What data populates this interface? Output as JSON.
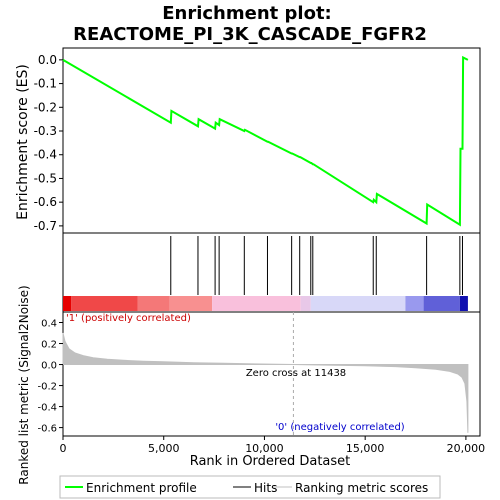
{
  "title_line1": "Enrichment plot:",
  "title_line2": "REACTOME_PI_3K_CASCADE_FGFR2",
  "colors": {
    "es_line": "#00ff00",
    "hit": "#000000",
    "metric_fill": "#c0c0c0",
    "pos_text": "#cc0000",
    "neg_text": "#0000cc",
    "zero_line": "#aaaaaa"
  },
  "chart_data": [
    {
      "type": "line",
      "name": "enrichment-score-panel",
      "ylabel": "Enrichment score (ES)",
      "xlim": [
        0,
        20700
      ],
      "ylim": [
        -0.73,
        0.05
      ],
      "yticks": [
        0.0,
        -0.1,
        -0.2,
        -0.3,
        -0.4,
        -0.5,
        -0.6,
        -0.7
      ],
      "ytick_labels": [
        "0.0",
        "-0.1",
        "-0.2",
        "-0.3",
        "-0.4",
        "-0.5",
        "-0.6",
        "-0.7"
      ],
      "series": [
        {
          "x": [
            0,
            5350,
            5380,
            6700,
            6730,
            7550,
            7580,
            7750,
            7780,
            9000,
            9030,
            10150,
            10180,
            11350,
            11380,
            11750,
            11780,
            12300,
            12330,
            12400,
            12430,
            15400,
            15430,
            15550,
            15580,
            18050,
            18080,
            19700,
            19730,
            19830,
            19860,
            20100
          ],
          "y": [
            0.0,
            -0.265,
            -0.215,
            -0.28,
            -0.25,
            -0.29,
            -0.265,
            -0.275,
            -0.25,
            -0.3,
            -0.295,
            -0.345,
            -0.345,
            -0.395,
            -0.395,
            -0.41,
            -0.41,
            -0.435,
            -0.435,
            -0.44,
            -0.44,
            -0.6,
            -0.59,
            -0.6,
            -0.565,
            -0.69,
            -0.61,
            -0.695,
            -0.375,
            -0.375,
            0.01,
            0.0
          ]
        }
      ],
      "hits": [
        5350,
        6700,
        7550,
        7750,
        9000,
        10150,
        11350,
        11750,
        12300,
        12400,
        15400,
        15550,
        18050,
        19700,
        19830
      ]
    },
    {
      "type": "area",
      "name": "ranked-metric-panel",
      "xlabel": "Rank in Ordered Dataset",
      "ylabel": "Ranked list metric (Signal2Noise)",
      "xlim": [
        0,
        20700
      ],
      "ylim": [
        -0.68,
        0.5
      ],
      "yticks": [
        0.4,
        0.2,
        0.0,
        -0.2,
        -0.4,
        -0.6
      ],
      "ytick_labels": [
        "0.4",
        "0.2",
        "0.0",
        "-0.2",
        "-0.4",
        "-0.6"
      ],
      "xticks": [
        0,
        5000,
        10000,
        15000,
        20000
      ],
      "xtick_labels": [
        "0",
        "5,000",
        "10,000",
        "15,000",
        "20,000"
      ],
      "x": [
        0,
        100,
        300,
        600,
        1000,
        1500,
        2200,
        3000,
        4000,
        5000,
        6500,
        8000,
        9500,
        11438,
        13000,
        15000,
        16500,
        17500,
        18500,
        19200,
        19600,
        19800,
        19950,
        20050,
        20100
      ],
      "y": [
        0.3,
        0.22,
        0.15,
        0.11,
        0.085,
        0.065,
        0.05,
        0.04,
        0.032,
        0.026,
        0.018,
        0.012,
        0.006,
        0.0,
        -0.005,
        -0.012,
        -0.02,
        -0.03,
        -0.045,
        -0.065,
        -0.09,
        -0.12,
        -0.18,
        -0.35,
        -0.65
      ],
      "zero_cross_label": "Zero cross at 11438",
      "zero_cross_x": 11438,
      "pos_label": "'1' (positively correlated)",
      "neg_label": "'0' (negatively correlated)"
    }
  ],
  "heat_bar": [
    {
      "from": 0,
      "to": 400,
      "color": "#e60000"
    },
    {
      "from": 400,
      "to": 3700,
      "color": "#f04848"
    },
    {
      "from": 3700,
      "to": 5300,
      "color": "#f47878"
    },
    {
      "from": 5300,
      "to": 7400,
      "color": "#f89090"
    },
    {
      "from": 7400,
      "to": 11800,
      "color": "#f9c0dc"
    },
    {
      "from": 11800,
      "to": 12300,
      "color": "#e8c8e8"
    },
    {
      "from": 12300,
      "to": 17000,
      "color": "#d8d8f8"
    },
    {
      "from": 17000,
      "to": 17900,
      "color": "#9999ee"
    },
    {
      "from": 17900,
      "to": 19700,
      "color": "#6060d8"
    },
    {
      "from": 19700,
      "to": 20100,
      "color": "#1010b0"
    }
  ],
  "legend": [
    {
      "label": "Enrichment profile",
      "key": "es"
    },
    {
      "label": "Hits",
      "key": "hits"
    },
    {
      "label": "Ranking metric scores",
      "key": "metric"
    }
  ]
}
